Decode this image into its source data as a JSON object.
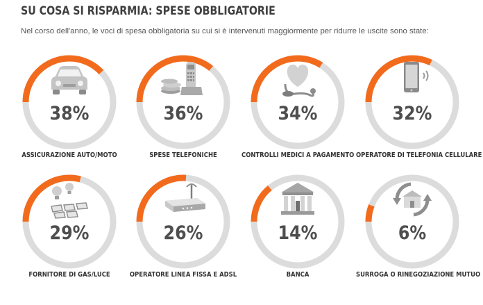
{
  "header": {
    "title": "SU COSA SI RISPARMIA: SPESE OBBLIGATORIE",
    "subtitle": "Nel corso dell'anno, le voci di spesa obbligatoria su cui si è intervenuti maggiormente per ridurre le uscite sono state:"
  },
  "colors": {
    "accent": "#f26b1d",
    "track": "#dcdcdc",
    "icon": "#b5b5b5"
  },
  "chart_data": {
    "type": "donut-gauges",
    "unit": "%",
    "items": [
      {
        "label": "ASSICURAZIONE AUTO/MOTO",
        "value": 38,
        "display": "38%",
        "icon": "car-icon"
      },
      {
        "label": "SPESE TELEFONICHE",
        "value": 36,
        "display": "36%",
        "icon": "phone-coins-icon"
      },
      {
        "label": "CONTROLLI MEDICI A PAGAMENTO",
        "value": 34,
        "display": "34%",
        "icon": "heart-stethoscope-icon"
      },
      {
        "label": "OPERATORE DI TELEFONIA CELLULARE",
        "value": 32,
        "display": "32%",
        "icon": "smartphone-icon"
      },
      {
        "label": "FORNITORE DI GAS/LUCE",
        "value": 29,
        "display": "29%",
        "icon": "bulbs-solar-icon"
      },
      {
        "label": "OPERATORE LINEA FISSA E ADSL",
        "value": 26,
        "display": "26%",
        "icon": "router-icon"
      },
      {
        "label": "BANCA",
        "value": 14,
        "display": "14%",
        "icon": "bank-icon"
      },
      {
        "label": "SURROGA O RINEGOZIAZIONE MUTUO",
        "value": 6,
        "display": "6%",
        "icon": "house-refresh-icon"
      }
    ]
  }
}
